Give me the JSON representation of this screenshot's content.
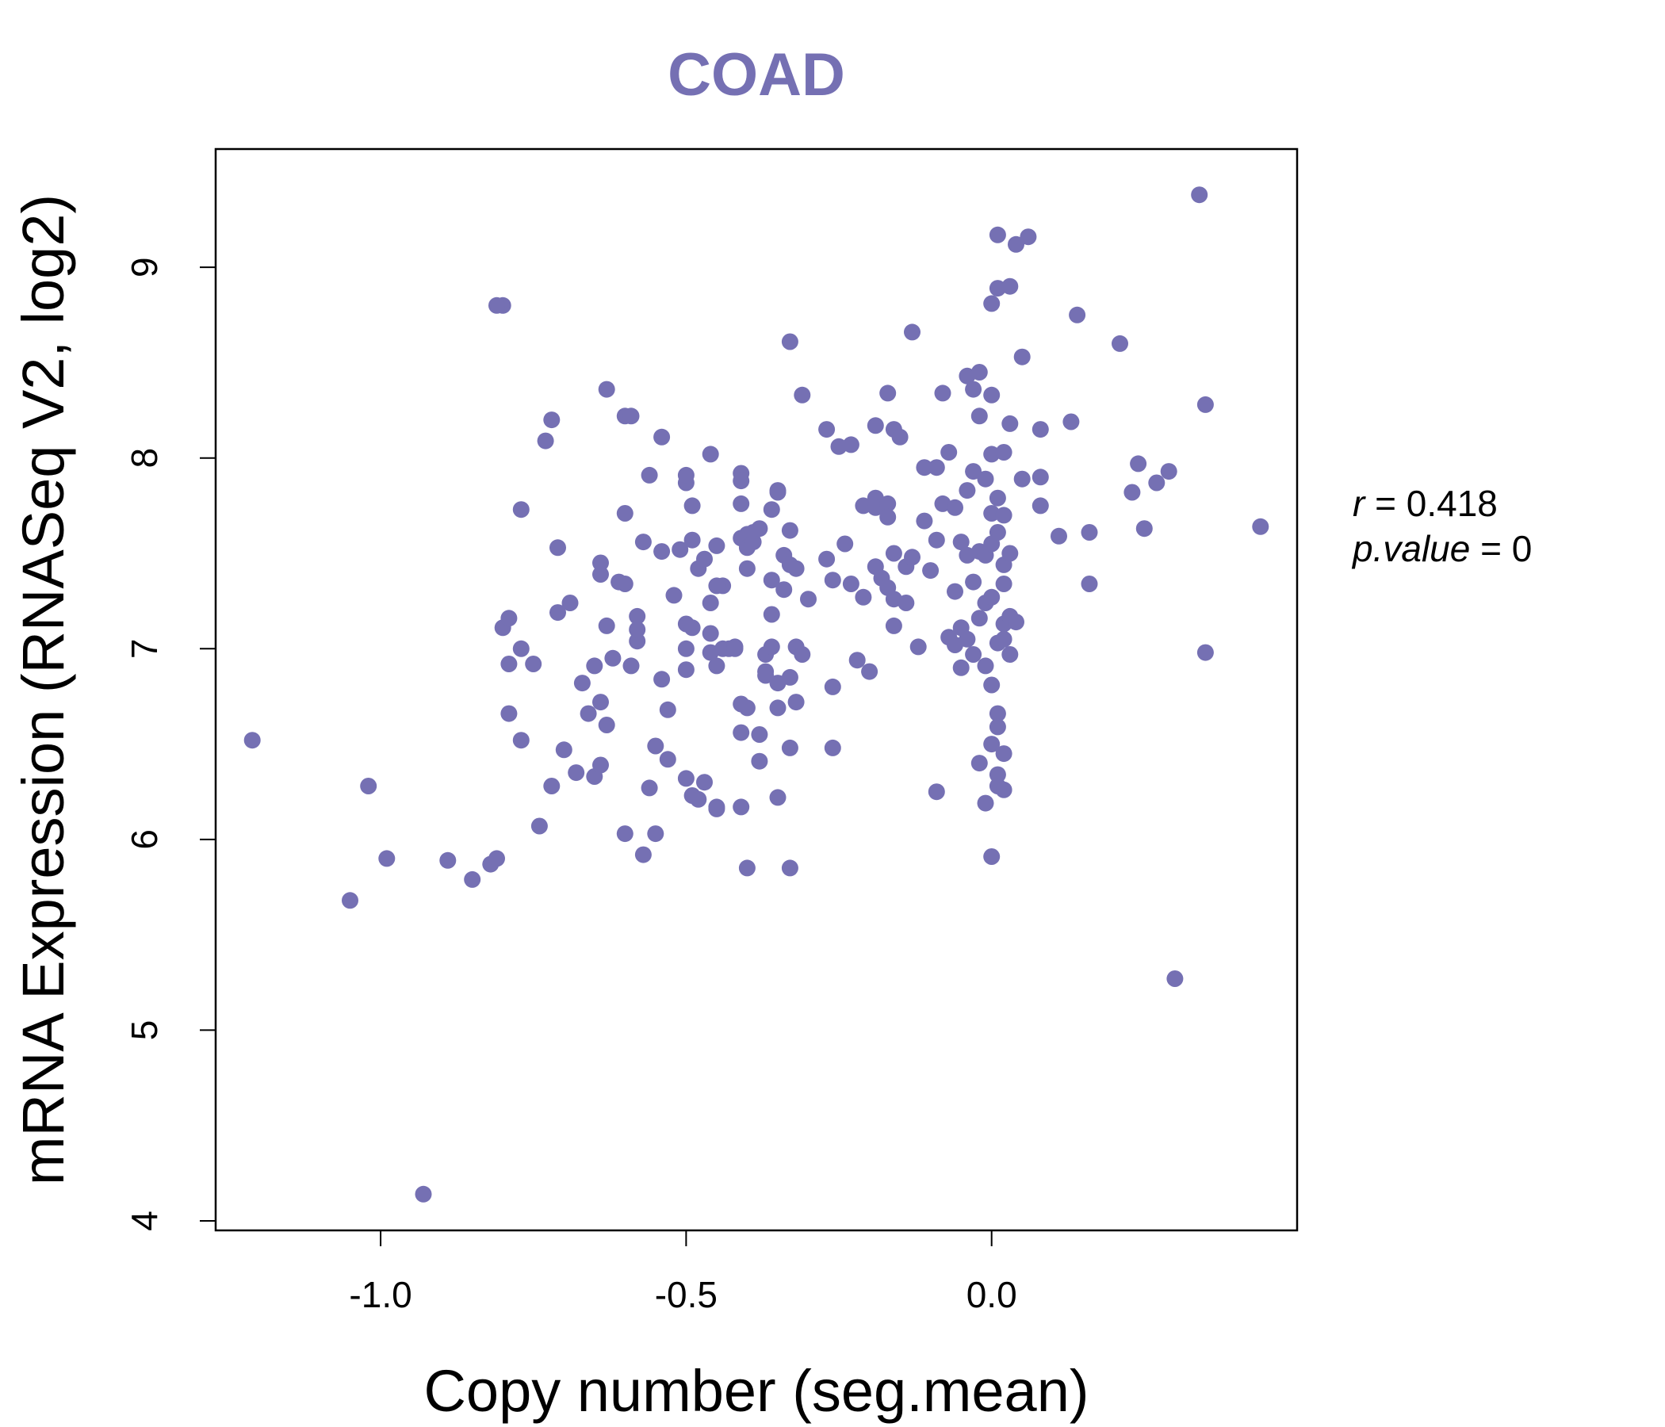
{
  "chart_data": {
    "type": "scatter",
    "title": "COAD",
    "xlabel": "Copy number (seg.mean)",
    "ylabel": "mRNA Expression (RNASeq V2, log2)",
    "xlim": [
      -1.27,
      0.5
    ],
    "ylim": [
      3.95,
      9.62
    ],
    "x_ticks": [
      -1.0,
      -0.5,
      0.0
    ],
    "x_tick_labels": [
      "-1.0",
      "-0.5",
      "0.0"
    ],
    "y_ticks": [
      4,
      5,
      6,
      7,
      8,
      9
    ],
    "y_tick_labels": [
      "4",
      "5",
      "6",
      "7",
      "8",
      "9"
    ],
    "point_color": "#7570b3",
    "title_color": "#7570b3",
    "stats": {
      "r_label": "r",
      "r_value": "0.418",
      "p_label": "p.value",
      "p_value": "0"
    },
    "points": [
      [
        -1.21,
        6.52
      ],
      [
        -1.02,
        6.28
      ],
      [
        -1.05,
        5.68
      ],
      [
        -0.99,
        5.9
      ],
      [
        -0.93,
        4.14
      ],
      [
        -0.89,
        5.89
      ],
      [
        -0.85,
        5.79
      ],
      [
        -0.82,
        5.87
      ],
      [
        -0.81,
        5.9
      ],
      [
        -0.8,
        8.8
      ],
      [
        -0.8,
        7.11
      ],
      [
        -0.79,
        7.16
      ],
      [
        -0.79,
        6.92
      ],
      [
        -0.79,
        6.66
      ],
      [
        -0.77,
        6.52
      ],
      [
        -0.77,
        7.73
      ],
      [
        -0.77,
        7.0
      ],
      [
        -0.75,
        6.92
      ],
      [
        -0.74,
        6.07
      ],
      [
        -0.73,
        8.09
      ],
      [
        -0.72,
        6.28
      ],
      [
        -0.72,
        8.2
      ],
      [
        -0.71,
        7.53
      ],
      [
        -0.71,
        7.19
      ],
      [
        -0.7,
        6.47
      ],
      [
        -0.69,
        7.24
      ],
      [
        -0.68,
        6.35
      ],
      [
        -0.67,
        6.82
      ],
      [
        -0.66,
        6.66
      ],
      [
        -0.65,
        6.33
      ],
      [
        -0.65,
        6.91
      ],
      [
        -0.64,
        7.39
      ],
      [
        -0.64,
        7.45
      ],
      [
        -0.64,
        6.72
      ],
      [
        -0.64,
        6.39
      ],
      [
        -0.63,
        8.36
      ],
      [
        -0.63,
        6.6
      ],
      [
        -0.63,
        7.12
      ],
      [
        -0.62,
        6.95
      ],
      [
        -0.61,
        7.35
      ],
      [
        -0.6,
        7.71
      ],
      [
        -0.6,
        8.22
      ],
      [
        -0.6,
        7.34
      ],
      [
        -0.59,
        6.91
      ],
      [
        -0.6,
        6.03
      ],
      [
        -0.58,
        7.04
      ],
      [
        -0.58,
        7.1
      ],
      [
        -0.58,
        7.17
      ],
      [
        -0.57,
        7.56
      ],
      [
        -0.57,
        5.92
      ],
      [
        -0.56,
        6.27
      ],
      [
        -0.56,
        7.91
      ],
      [
        -0.55,
        6.03
      ],
      [
        -0.55,
        6.49
      ],
      [
        -0.54,
        6.84
      ],
      [
        -0.54,
        8.11
      ],
      [
        -0.54,
        7.51
      ],
      [
        -0.53,
        6.42
      ],
      [
        -0.53,
        6.68
      ],
      [
        -0.52,
        7.28
      ],
      [
        -0.51,
        7.52
      ],
      [
        -0.5,
        7.87
      ],
      [
        -0.5,
        7.91
      ],
      [
        -0.5,
        7.0
      ],
      [
        -0.5,
        6.89
      ],
      [
        -0.5,
        6.32
      ],
      [
        -0.5,
        7.13
      ],
      [
        -0.49,
        7.75
      ],
      [
        -0.49,
        7.57
      ],
      [
        -0.49,
        7.11
      ],
      [
        -0.49,
        6.23
      ],
      [
        -0.48,
        7.42
      ],
      [
        -0.48,
        6.21
      ],
      [
        -0.47,
        7.47
      ],
      [
        -0.47,
        6.3
      ],
      [
        -0.46,
        8.02
      ],
      [
        -0.46,
        7.24
      ],
      [
        -0.46,
        7.08
      ],
      [
        -0.46,
        6.98
      ],
      [
        -0.45,
        6.91
      ],
      [
        -0.45,
        6.16
      ],
      [
        -0.45,
        6.17
      ],
      [
        -0.45,
        7.54
      ],
      [
        -0.44,
        7.33
      ],
      [
        -0.44,
        7.0
      ],
      [
        -0.43,
        7.0
      ],
      [
        -0.42,
        7.01
      ],
      [
        -0.42,
        7.0
      ],
      [
        -0.41,
        7.92
      ],
      [
        -0.41,
        7.88
      ],
      [
        -0.41,
        7.76
      ],
      [
        -0.41,
        7.58
      ],
      [
        -0.41,
        6.71
      ],
      [
        -0.41,
        6.56
      ],
      [
        -0.41,
        6.17
      ],
      [
        -0.4,
        7.6
      ],
      [
        -0.4,
        7.42
      ],
      [
        -0.4,
        7.53
      ],
      [
        -0.4,
        6.69
      ],
      [
        -0.39,
        7.61
      ],
      [
        -0.39,
        7.56
      ],
      [
        -0.38,
        7.63
      ],
      [
        -0.38,
        6.55
      ],
      [
        -0.38,
        6.41
      ],
      [
        -0.37,
        6.97
      ],
      [
        -0.37,
        6.88
      ],
      [
        -0.37,
        6.86
      ],
      [
        -0.36,
        7.73
      ],
      [
        -0.36,
        7.36
      ],
      [
        -0.36,
        7.18
      ],
      [
        -0.36,
        7.01
      ],
      [
        -0.35,
        7.83
      ],
      [
        -0.35,
        6.82
      ],
      [
        -0.35,
        6.69
      ],
      [
        -0.35,
        6.22
      ],
      [
        -0.34,
        7.49
      ],
      [
        -0.34,
        7.31
      ],
      [
        -0.33,
        8.61
      ],
      [
        -0.33,
        7.62
      ],
      [
        -0.33,
        7.44
      ],
      [
        -0.33,
        6.85
      ],
      [
        -0.33,
        5.85
      ],
      [
        -0.33,
        6.48
      ],
      [
        -0.32,
        7.42
      ],
      [
        -0.32,
        7.01
      ],
      [
        -0.32,
        6.72
      ],
      [
        -0.31,
        6.97
      ],
      [
        -0.31,
        8.33
      ],
      [
        -0.3,
        7.26
      ],
      [
        -0.4,
        5.85
      ],
      [
        -0.27,
        7.47
      ],
      [
        -0.27,
        8.15
      ],
      [
        -0.26,
        7.36
      ],
      [
        -0.26,
        6.8
      ],
      [
        -0.26,
        6.48
      ],
      [
        -0.25,
        8.06
      ],
      [
        -0.24,
        7.55
      ],
      [
        -0.23,
        7.34
      ],
      [
        -0.23,
        8.07
      ],
      [
        -0.22,
        6.94
      ],
      [
        -0.21,
        7.27
      ],
      [
        -0.21,
        7.75
      ],
      [
        -0.2,
        6.88
      ],
      [
        -0.19,
        7.79
      ],
      [
        -0.19,
        7.43
      ],
      [
        -0.19,
        8.17
      ],
      [
        -0.19,
        7.74
      ],
      [
        -0.18,
        7.37
      ],
      [
        -0.17,
        7.32
      ],
      [
        -0.17,
        8.34
      ],
      [
        -0.17,
        7.76
      ],
      [
        -0.17,
        7.69
      ],
      [
        -0.16,
        7.5
      ],
      [
        -0.16,
        7.26
      ],
      [
        -0.16,
        7.12
      ],
      [
        -0.16,
        8.15
      ],
      [
        -0.15,
        8.11
      ],
      [
        -0.14,
        7.24
      ],
      [
        -0.14,
        7.43
      ],
      [
        -0.13,
        8.66
      ],
      [
        -0.13,
        7.48
      ],
      [
        -0.12,
        7.01
      ],
      [
        -0.11,
        7.95
      ],
      [
        -0.11,
        7.67
      ],
      [
        -0.1,
        7.41
      ],
      [
        -0.09,
        7.95
      ],
      [
        -0.09,
        7.57
      ],
      [
        -0.09,
        6.25
      ],
      [
        -0.08,
        7.76
      ],
      [
        -0.08,
        8.34
      ],
      [
        -0.07,
        7.06
      ],
      [
        -0.07,
        8.03
      ],
      [
        -0.06,
        7.74
      ],
      [
        -0.06,
        7.3
      ],
      [
        -0.06,
        7.02
      ],
      [
        -0.05,
        7.11
      ],
      [
        -0.05,
        6.9
      ],
      [
        -0.04,
        7.83
      ],
      [
        -0.04,
        8.43
      ],
      [
        -0.04,
        7.49
      ],
      [
        -0.04,
        7.05
      ],
      [
        -0.03,
        8.36
      ],
      [
        -0.03,
        7.93
      ],
      [
        -0.03,
        7.35
      ],
      [
        -0.03,
        6.97
      ],
      [
        -0.02,
        8.45
      ],
      [
        -0.02,
        7.51
      ],
      [
        -0.02,
        7.16
      ],
      [
        -0.02,
        6.4
      ],
      [
        -0.01,
        7.89
      ],
      [
        -0.01,
        7.49
      ],
      [
        -0.01,
        7.24
      ],
      [
        -0.01,
        6.91
      ],
      [
        -0.01,
        6.19
      ],
      [
        0.0,
        8.02
      ],
      [
        0.0,
        7.71
      ],
      [
        0.0,
        7.55
      ],
      [
        0.0,
        7.27
      ],
      [
        0.0,
        6.81
      ],
      [
        0.0,
        6.5
      ],
      [
        0.0,
        5.91
      ],
      [
        0.0,
        8.33
      ],
      [
        0.01,
        9.17
      ],
      [
        0.01,
        8.89
      ],
      [
        0.01,
        7.79
      ],
      [
        0.01,
        7.03
      ],
      [
        0.01,
        6.66
      ],
      [
        0.01,
        6.34
      ],
      [
        0.01,
        6.28
      ],
      [
        0.01,
        7.61
      ],
      [
        0.01,
        6.59
      ],
      [
        0.02,
        8.03
      ],
      [
        0.02,
        7.7
      ],
      [
        0.02,
        7.44
      ],
      [
        0.02,
        7.13
      ],
      [
        0.02,
        6.45
      ],
      [
        0.02,
        6.26
      ],
      [
        0.02,
        7.34
      ],
      [
        0.02,
        7.05
      ],
      [
        0.03,
        8.9
      ],
      [
        0.03,
        8.18
      ],
      [
        0.03,
        7.5
      ],
      [
        0.03,
        7.17
      ],
      [
        0.03,
        6.97
      ],
      [
        0.04,
        9.12
      ],
      [
        0.04,
        7.14
      ],
      [
        0.05,
        8.53
      ],
      [
        0.05,
        7.89
      ],
      [
        0.06,
        9.16
      ],
      [
        0.08,
        8.15
      ],
      [
        0.08,
        7.9
      ],
      [
        0.08,
        7.75
      ],
      [
        0.11,
        7.59
      ],
      [
        0.13,
        8.19
      ],
      [
        0.14,
        8.75
      ],
      [
        0.16,
        7.61
      ],
      [
        0.16,
        7.34
      ],
      [
        0.21,
        8.6
      ],
      [
        0.23,
        7.82
      ],
      [
        0.24,
        7.97
      ],
      [
        0.25,
        7.63
      ],
      [
        0.27,
        7.87
      ],
      [
        0.29,
        7.93
      ],
      [
        0.3,
        5.27
      ],
      [
        0.34,
        9.38
      ],
      [
        0.35,
        8.28
      ],
      [
        0.35,
        6.98
      ],
      [
        0.44,
        7.64
      ],
      [
        -0.35,
        7.82
      ],
      [
        -0.59,
        8.22
      ],
      [
        -0.81,
        8.8
      ],
      [
        0.0,
        8.81
      ],
      [
        -0.45,
        7.33
      ],
      [
        -0.05,
        7.56
      ],
      [
        -0.02,
        8.22
      ]
    ]
  }
}
